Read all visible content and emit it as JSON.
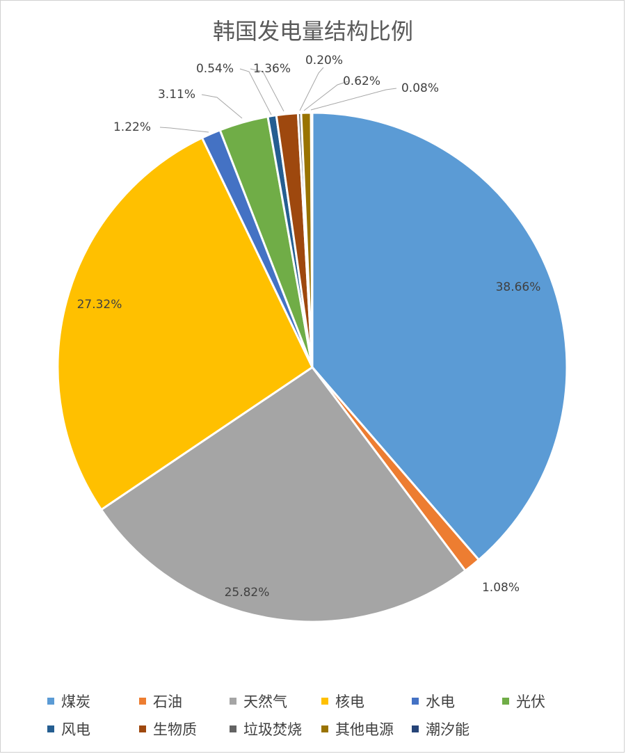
{
  "chart_data": {
    "type": "pie",
    "title": "韩国发电量结构比例",
    "categories": [
      "煤炭",
      "石油",
      "天然气",
      "核电",
      "水电",
      "光伏",
      "风电",
      "生物质",
      "垃圾焚烧",
      "其他电源",
      "潮汐能"
    ],
    "values": [
      38.66,
      1.08,
      25.82,
      27.32,
      1.22,
      3.11,
      0.54,
      1.36,
      0.2,
      0.62,
      0.08
    ],
    "labels": [
      "38.66%",
      "1.08%",
      "25.82%",
      "27.32%",
      "1.22%",
      "3.11%",
      "0.54%",
      "1.36%",
      "0.20%",
      "0.62%",
      "0.08%"
    ],
    "colors": [
      "#5B9BD5",
      "#ED7D31",
      "#A5A5A5",
      "#FFC000",
      "#4472C4",
      "#70AD47",
      "#255E91",
      "#9E480E",
      "#636363",
      "#997300",
      "#264478"
    ],
    "legend_position": "bottom"
  }
}
